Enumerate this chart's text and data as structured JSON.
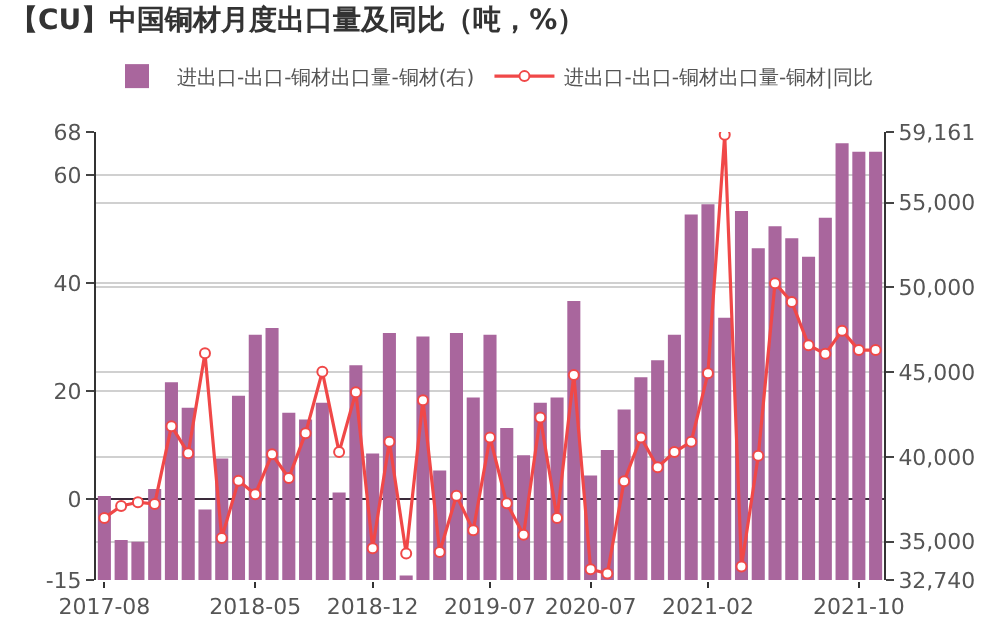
{
  "chart_data": {
    "type": "bar",
    "title": "【CU】中国铜材月度出口量及同比（吨，%）",
    "categories": [
      "2017-08",
      null,
      null,
      null,
      null,
      null,
      null,
      null,
      null,
      "2018-05",
      null,
      null,
      null,
      null,
      null,
      null,
      "2018-12",
      null,
      null,
      null,
      null,
      null,
      null,
      "2019-07",
      null,
      null,
      null,
      null,
      null,
      "2020-07",
      null,
      null,
      null,
      null,
      null,
      null,
      "2021-02",
      null,
      null,
      null,
      null,
      null,
      null,
      null,
      null,
      "2021-10",
      null
    ],
    "series": [
      {
        "name": "进出口-出口-铜材出口量-铜材(右)",
        "axis": "y2",
        "color": "#a9669d",
        "values": [
          37700,
          35100,
          35000,
          38100,
          44400,
          42900,
          36900,
          39900,
          43600,
          47200,
          47600,
          42600,
          42200,
          43200,
          37900,
          45400,
          40200,
          47300,
          33000,
          47100,
          39200,
          47300,
          43500,
          47200,
          41700,
          40100,
          43200,
          43500,
          49200,
          38900,
          40400,
          42800,
          44700,
          45700,
          47200,
          54300,
          54900,
          48200,
          54500,
          52300,
          53600,
          52900,
          51800,
          54100,
          58500,
          58000,
          58000
        ]
      },
      {
        "name": "进出口-出口-铜材出口量-铜材|同比",
        "type": "line",
        "color": "#f04848",
        "values": [
          -3.5,
          -1.3,
          -0.6,
          -0.9,
          13.5,
          8.5,
          27.0,
          -7.2,
          3.4,
          0.9,
          8.3,
          3.9,
          12.2,
          23.6,
          8.7,
          19.8,
          -9.1,
          10.6,
          -10.1,
          18.3,
          -9.8,
          0.6,
          -5.8,
          11.4,
          -0.8,
          -6.6,
          15.1,
          -3.5,
          23.0,
          -13.0,
          -13.8,
          3.3,
          11.4,
          5.9,
          8.7,
          10.6,
          23.3,
          67.5,
          -12.5,
          8.0,
          40.0,
          36.5,
          28.5,
          26.9,
          31.2,
          27.6,
          27.6
        ]
      }
    ],
    "ylim": [
      -15,
      68
    ],
    "yticks": [
      -15,
      0,
      20,
      40,
      60,
      68
    ],
    "y2lim": [
      32740,
      59161
    ],
    "y2ticks": [
      {
        "value": 32740,
        "label": "32,740"
      },
      {
        "value": 35000,
        "label": "35,000"
      },
      {
        "value": 40000,
        "label": "40,000"
      },
      {
        "value": 45000,
        "label": "45,000"
      },
      {
        "value": 50000,
        "label": "50,000"
      },
      {
        "value": 55000,
        "label": "55,000"
      },
      {
        "value": 59161,
        "label": "59,161"
      }
    ],
    "grid": "y",
    "legend": "top",
    "marker": "circle",
    "line_style": "solid"
  }
}
